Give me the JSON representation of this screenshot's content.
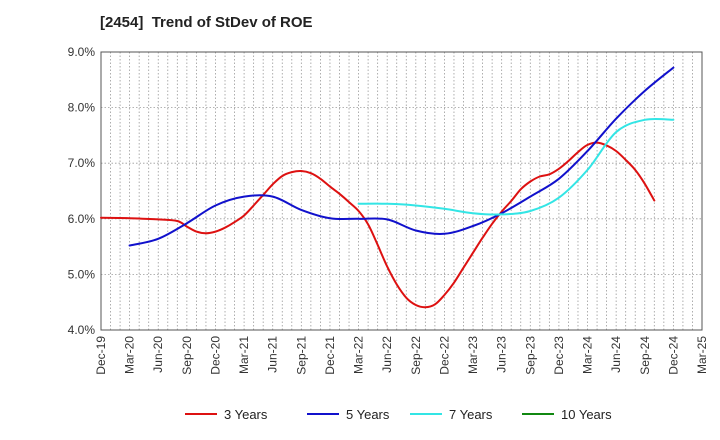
{
  "chart_data": {
    "type": "line",
    "title": "[2454]  Trend of StDev of ROE",
    "xlabel": "",
    "ylabel": "",
    "ylim": [
      4.0,
      9.0
    ],
    "y_ticks": [
      4.0,
      5.0,
      6.0,
      7.0,
      8.0,
      9.0
    ],
    "y_tick_labels": [
      "4.0%",
      "5.0%",
      "6.0%",
      "7.0%",
      "8.0%",
      "9.0%"
    ],
    "x_tick_labels": [
      "Dec-19",
      "Mar-20",
      "Jun-20",
      "Sep-20",
      "Dec-20",
      "Mar-21",
      "Jun-21",
      "Sep-21",
      "Dec-21",
      "Mar-22",
      "Jun-22",
      "Sep-22",
      "Dec-22",
      "Mar-23",
      "Jun-23",
      "Sep-23",
      "Dec-23",
      "Mar-24",
      "Jun-24",
      "Sep-24",
      "Dec-24",
      "Mar-25"
    ],
    "grid": true,
    "legend_position": "bottom",
    "series": [
      {
        "name": "3 Years",
        "color": "#dd1111",
        "x": [
          "Dec-19",
          "Mar-20",
          "Jun-20",
          "Aug-20",
          "Sep-20",
          "Oct-20",
          "Nov-20",
          "Dec-20",
          "Jan-21",
          "Feb-21",
          "Mar-21",
          "Apr-21",
          "May-21",
          "Jun-21",
          "Jul-21",
          "Aug-21",
          "Sep-21",
          "Oct-21",
          "Nov-21",
          "Dec-21",
          "Jan-22",
          "Feb-22",
          "Mar-22",
          "Apr-22",
          "May-22",
          "Jun-22",
          "Jul-22",
          "Aug-22",
          "Sep-22",
          "Oct-22",
          "Nov-22",
          "Dec-22",
          "Jan-23",
          "Feb-23",
          "Mar-23",
          "Apr-23",
          "May-23",
          "Jun-23",
          "Jul-23",
          "Aug-23",
          "Sep-23",
          "Oct-23",
          "Nov-23",
          "Dec-23",
          "Jan-24",
          "Feb-24",
          "Mar-24",
          "Apr-24",
          "May-24",
          "Jun-24",
          "Jul-24",
          "Aug-24",
          "Sep-24",
          "Oct-24",
          "Nov-24",
          "Dec-24"
        ],
        "values": [
          6.02,
          6.01,
          5.99,
          5.96,
          5.86,
          5.77,
          5.74,
          5.77,
          5.84,
          5.94,
          6.06,
          6.24,
          6.43,
          6.62,
          6.77,
          6.84,
          6.86,
          6.82,
          6.72,
          6.58,
          6.45,
          6.3,
          6.14,
          5.9,
          5.53,
          5.14,
          4.82,
          4.58,
          4.45,
          4.41,
          4.46,
          4.63,
          4.85,
          5.12,
          5.39,
          5.66,
          5.91,
          6.13,
          6.32,
          6.53,
          6.67,
          6.76,
          6.8,
          6.9,
          7.04,
          7.2,
          7.33,
          7.37,
          7.32,
          7.22,
          7.06,
          6.88,
          6.63,
          6.33,
          null,
          null
        ],
        "note": ""
      },
      {
        "name": "5 Years",
        "color": "#1111cc",
        "x": [
          "Mar-20",
          "Jun-20",
          "Sep-20",
          "Dec-20",
          "Mar-21",
          "Jun-21",
          "Sep-21",
          "Dec-21",
          "Mar-22",
          "Jun-22",
          "Sep-22",
          "Dec-22",
          "Mar-23",
          "Jun-23",
          "Sep-23",
          "Dec-23",
          "Mar-24",
          "Jun-24",
          "Sep-24",
          "Dec-24"
        ],
        "values": [
          5.52,
          5.64,
          5.92,
          6.24,
          6.4,
          6.4,
          6.16,
          6.01,
          6.0,
          5.99,
          5.79,
          5.73,
          5.87,
          6.1,
          6.4,
          6.72,
          7.22,
          7.8,
          8.3,
          8.72
        ]
      },
      {
        "name": "7 Years",
        "color": "#33e5e5",
        "x": [
          "Mar-22",
          "Jun-22",
          "Sep-22",
          "Dec-22",
          "Mar-23",
          "Jun-23",
          "Sep-23",
          "Dec-23",
          "Mar-24",
          "Jun-24",
          "Sep-24",
          "Dec-24"
        ],
        "values": [
          6.27,
          6.27,
          6.24,
          6.18,
          6.1,
          6.08,
          6.14,
          6.38,
          6.88,
          7.56,
          7.78,
          7.78
        ]
      },
      {
        "name": "10 Years",
        "color": "#118811",
        "x": [],
        "values": []
      }
    ]
  }
}
